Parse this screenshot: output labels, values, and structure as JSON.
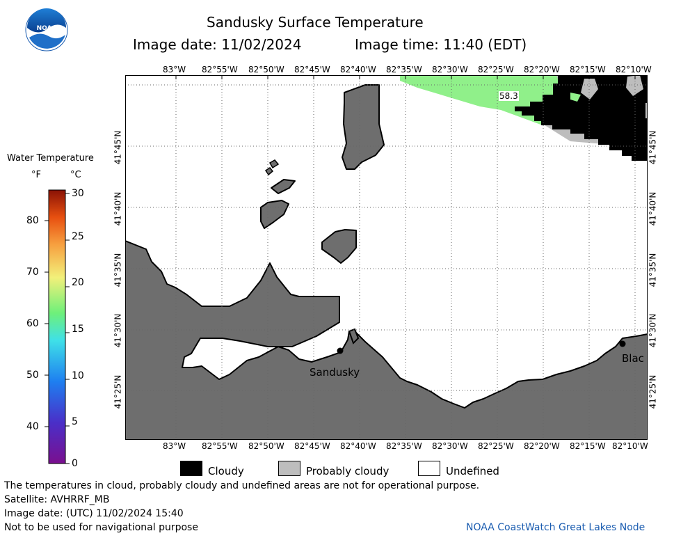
{
  "header": {
    "logo_text": "NOAA",
    "title": "Sandusky Surface Temperature",
    "image_date": "Image date: 11/02/2024",
    "image_time": "Image time: 11:40 (EDT)"
  },
  "colorbar": {
    "title": "Water Temperature",
    "unit_f": "°F",
    "unit_c": "°C",
    "f_ticks": [
      "80",
      "70",
      "60",
      "50",
      "40"
    ],
    "c_ticks": [
      "30",
      "25",
      "20",
      "15",
      "10",
      "5",
      "0"
    ]
  },
  "map": {
    "lon_labels": [
      "83°W",
      "82°55'W",
      "82°50'W",
      "82°45'W",
      "82°40'W",
      "82°35'W",
      "82°30'W",
      "82°25'W",
      "82°20'W",
      "82°15'W",
      "82°10'W"
    ],
    "lat_labels": [
      "41°45'N",
      "41°40'N",
      "41°35'N",
      "41°30'N",
      "41°25'N"
    ],
    "cities": [
      "Sandusky",
      "Blac"
    ],
    "reading": "58.3",
    "colors": {
      "land": "#6e6e6e",
      "cloudy": "#000000",
      "probably_cloudy": "#bdbdbd",
      "water_warm": "#90f08a",
      "undefined": "#ffffff"
    }
  },
  "legend": {
    "cloudy": "Cloudy",
    "probably_cloudy": "Probably cloudy",
    "undefined": "Undefined"
  },
  "footer": {
    "disclaimer": "The temperatures in cloud, probably cloudy and undefined areas are not for operational purpose.",
    "satellite": "Satellite: AVHRRF_MB",
    "utc_date": "Image date: (UTC) 11/02/2024   15:40",
    "nav_warning": "Not to be used for navigational purpose",
    "credit": "NOAA CoastWatch Great Lakes Node"
  }
}
